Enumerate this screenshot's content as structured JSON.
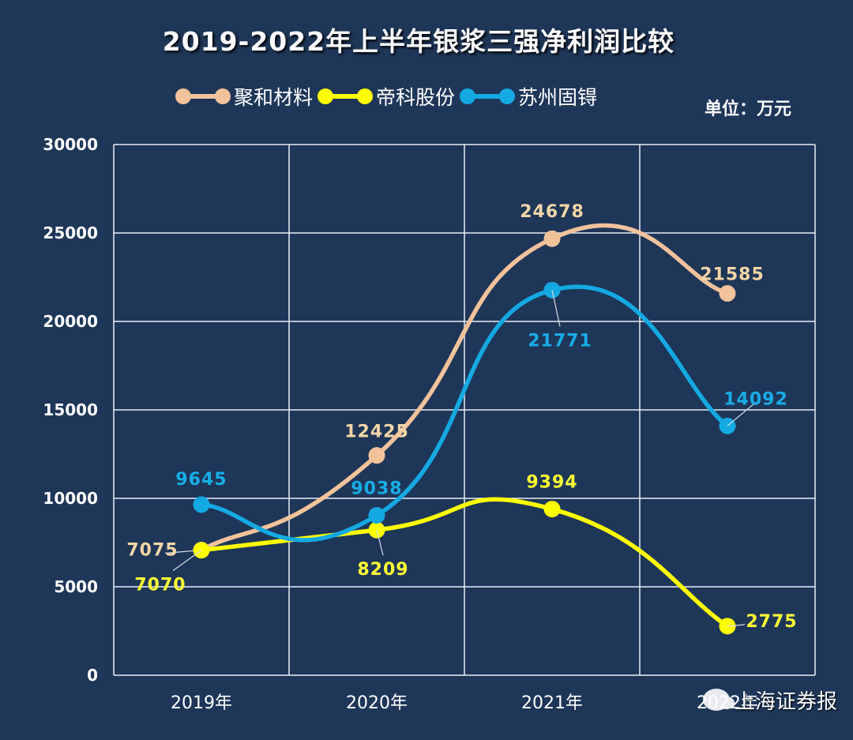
{
  "chart_data": {
    "type": "line",
    "title": "2019-2022年上半年银浆三强净利润比较",
    "unit_label": "单位：万元",
    "categories": [
      "2019年",
      "2020年",
      "2021年",
      "2022年"
    ],
    "ylim": [
      0,
      30000
    ],
    "yticks": [
      0,
      5000,
      10000,
      15000,
      20000,
      25000,
      30000
    ],
    "grid": true,
    "legend_position": "top",
    "series": [
      {
        "name": "聚和材料",
        "color": "#f2c29b",
        "values": [
          7075,
          12425,
          24678,
          21585
        ]
      },
      {
        "name": "帝科股份",
        "color": "#ffff00",
        "values": [
          7070,
          8209,
          9394,
          2775
        ]
      },
      {
        "name": "苏州固锝",
        "color": "#14a9e3",
        "values": [
          9645,
          9038,
          21771,
          14092
        ]
      }
    ]
  },
  "watermark": "上海证券报"
}
